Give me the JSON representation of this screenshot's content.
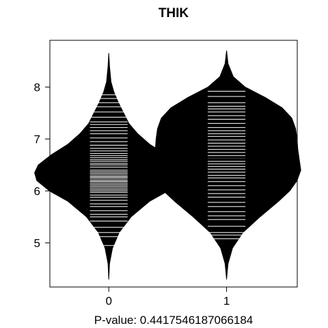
{
  "chart_data": {
    "type": "beanplot",
    "title": "THIK",
    "xlabel": "P-value: 0.4417546187066184",
    "ylabel": "",
    "categories": [
      "0",
      "1"
    ],
    "xlim": [
      0.5,
      2.6
    ],
    "ylim": [
      4.15,
      8.9
    ],
    "yticks": [
      5,
      6,
      7,
      8
    ],
    "overall_mean": 6.49,
    "groups": [
      {
        "name": "0",
        "mean": 6.43,
        "density": [
          [
            4.3,
            0.0
          ],
          [
            4.6,
            0.01
          ],
          [
            4.9,
            0.05
          ],
          [
            5.2,
            0.14
          ],
          [
            5.5,
            0.3
          ],
          [
            5.8,
            0.55
          ],
          [
            6.0,
            0.8
          ],
          [
            6.2,
            0.97
          ],
          [
            6.35,
            1.0
          ],
          [
            6.5,
            0.95
          ],
          [
            6.7,
            0.77
          ],
          [
            6.9,
            0.55
          ],
          [
            7.1,
            0.39
          ],
          [
            7.3,
            0.27
          ],
          [
            7.5,
            0.2
          ],
          [
            7.7,
            0.13
          ],
          [
            7.9,
            0.07
          ],
          [
            8.1,
            0.03
          ],
          [
            8.4,
            0.01
          ],
          [
            8.65,
            0.0
          ]
        ],
        "points": [
          4.95,
          5.12,
          5.2,
          5.3,
          5.42,
          5.5,
          5.55,
          5.62,
          5.7,
          5.75,
          5.82,
          5.88,
          5.92,
          5.97,
          6.0,
          6.03,
          6.06,
          6.09,
          6.12,
          6.15,
          6.18,
          6.2,
          6.23,
          6.26,
          6.28,
          6.31,
          6.34,
          6.37,
          6.4,
          6.43,
          6.46,
          6.5,
          6.53,
          6.57,
          6.6,
          6.64,
          6.68,
          6.72,
          6.77,
          6.82,
          6.88,
          6.95,
          7.02,
          7.1,
          7.16,
          7.22,
          7.28,
          7.33,
          7.42,
          7.52,
          7.62,
          7.7,
          7.78,
          7.85
        ]
      },
      {
        "name": "1",
        "mean": 6.61,
        "density": [
          [
            4.3,
            0.0
          ],
          [
            4.6,
            0.02
          ],
          [
            4.9,
            0.08
          ],
          [
            5.2,
            0.22
          ],
          [
            5.5,
            0.45
          ],
          [
            5.8,
            0.7
          ],
          [
            6.0,
            0.85
          ],
          [
            6.2,
            0.95
          ],
          [
            6.4,
            1.0
          ],
          [
            6.6,
            0.98
          ],
          [
            6.8,
            0.96
          ],
          [
            7.0,
            0.95
          ],
          [
            7.2,
            0.93
          ],
          [
            7.4,
            0.88
          ],
          [
            7.6,
            0.75
          ],
          [
            7.8,
            0.52
          ],
          [
            8.0,
            0.25
          ],
          [
            8.2,
            0.09
          ],
          [
            8.45,
            0.02
          ],
          [
            8.7,
            0.0
          ]
        ],
        "points": [
          5.08,
          5.15,
          5.2,
          5.32,
          5.45,
          5.52,
          5.6,
          5.7,
          5.78,
          5.88,
          5.95,
          6.02,
          6.1,
          6.18,
          6.25,
          6.3,
          6.36,
          6.42,
          6.47,
          6.52,
          6.57,
          6.62,
          6.68,
          6.74,
          6.8,
          6.86,
          6.92,
          6.98,
          7.05,
          7.1,
          7.16,
          7.22,
          7.3,
          7.38,
          7.45,
          7.52,
          7.58,
          7.63,
          7.7,
          7.82,
          7.92
        ]
      }
    ]
  }
}
